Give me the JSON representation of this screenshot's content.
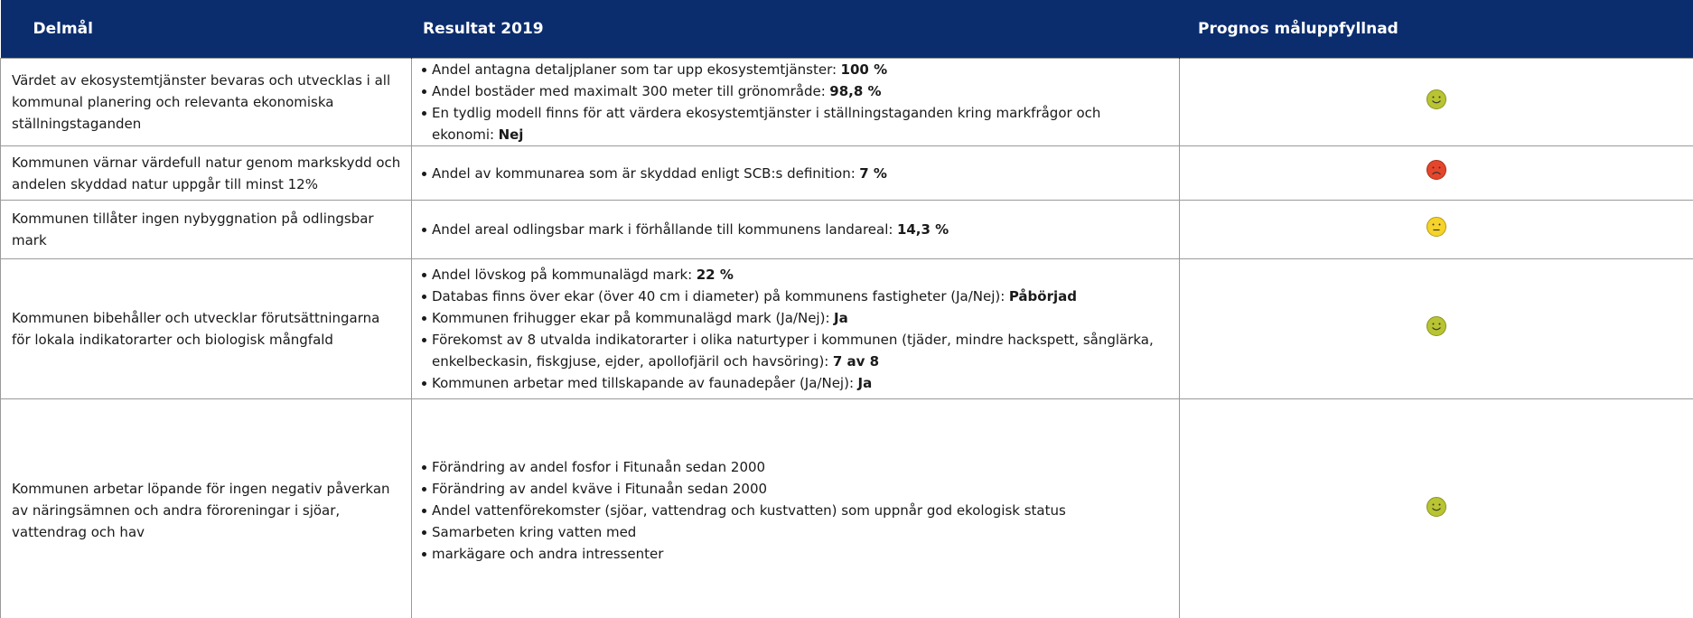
{
  "header": {
    "columns": [
      "Delmål",
      "Resultat 2019",
      "Prognos måluppfyllnad"
    ]
  },
  "rows": [
    {
      "goal": "Värdet av ekosystemtjänster bevaras och utvecklas i all kommunal planering och relevanta ekonomiska ställningstaganden",
      "results": [
        {
          "text": "Andel antagna detaljplaner som tar upp ekosystemtjänster:",
          "value": "100 %"
        },
        {
          "text": "Andel bostäder med maximalt 300 meter till grönområde:",
          "value": "98,8 %"
        },
        {
          "text": "En tydlig modell finns för att värdera ekosystemtjänster i ställningstaganden kring markfrågor och ekonomi:",
          "value": "Nej"
        }
      ]
    },
    {
      "goal": "Kommunen värnar värdefull natur genom markskydd och andelen skyddad natur uppgår till minst 12%",
      "results": [
        {
          "text": "Andel av kommunarea som är skyddad enligt SCB:s definition:",
          "value": "7 %"
        }
      ]
    },
    {
      "goal": "Kommunen tillåter ingen nybyggnation på odlingsbar mark",
      "results": [
        {
          "text": "Andel areal odlingsbar mark i förhållande till kommunens landareal:",
          "value": "14,3 %"
        }
      ]
    },
    {
      "goal": "Kommunen bibehåller och utvecklar förutsättningarna för lokala indikatorarter och biologisk mångfald",
      "results": [
        {
          "text": "Andel lövskog på kommunalägd mark:",
          "value": "22 %"
        },
        {
          "text": "Databas finns över ekar (över 40 cm i diameter) på kommunens fastigheter (Ja/Nej):",
          "value": "Påbörjad"
        },
        {
          "text": "Kommunen frihugger ekar på kommunalägd mark (Ja/Nej):",
          "value": "Ja"
        },
        {
          "text": "Förekomst av 8 utvalda indikatorarter i olika naturtyper i kommunen (tjäder, mindre hackspett, sånglärka, enkelbeckasin, fiskgjuse, ejder, apollofjäril och havsöring):",
          "value": "7 av 8"
        },
        {
          "text": "Kommunen arbetar med tillskapande av faunadepåer (Ja/Nej):",
          "value": "Ja"
        }
      ]
    },
    {
      "goal": "Kommunen arbetar löpande för ingen negativ påverkan av näringsämnen och andra föroreningar i sjöar, vattendrag och hav",
      "results": [
        {
          "text": "Förändring av andel fosfor i Fitunaån sedan 2000"
        },
        {
          "text": "Förändring av andel kväve i Fitunaån sedan 2000"
        },
        {
          "text": "Andel vattenförekomster (sjöar, vattendrag och kustvatten) som uppnår god ekologisk status"
        },
        {
          "text": "Samarbeten kring vatten med"
        },
        {
          "text": "markägare och andra intressenter"
        }
      ]
    }
  ]
}
